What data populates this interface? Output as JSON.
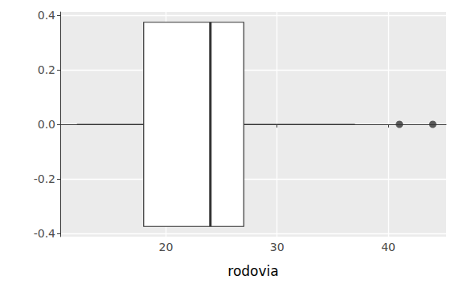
{
  "chart_data": {
    "type": "boxplot",
    "x_label": "rodovia",
    "stats": {
      "min": 12,
      "q1": 18,
      "median": 24,
      "q3": 27,
      "max": 37
    },
    "outliers": [
      41,
      44
    ],
    "xlim": [
      10.5,
      45.2
    ],
    "xticks": [
      20,
      30,
      40
    ],
    "ylim": [
      -0.4125,
      0.4125
    ],
    "yticks": [
      -0.4,
      -0.2,
      {
        "value": 0,
        "label": "0.0"
      },
      0.2,
      0.4
    ],
    "grid": true,
    "color": "#ffffff"
  }
}
